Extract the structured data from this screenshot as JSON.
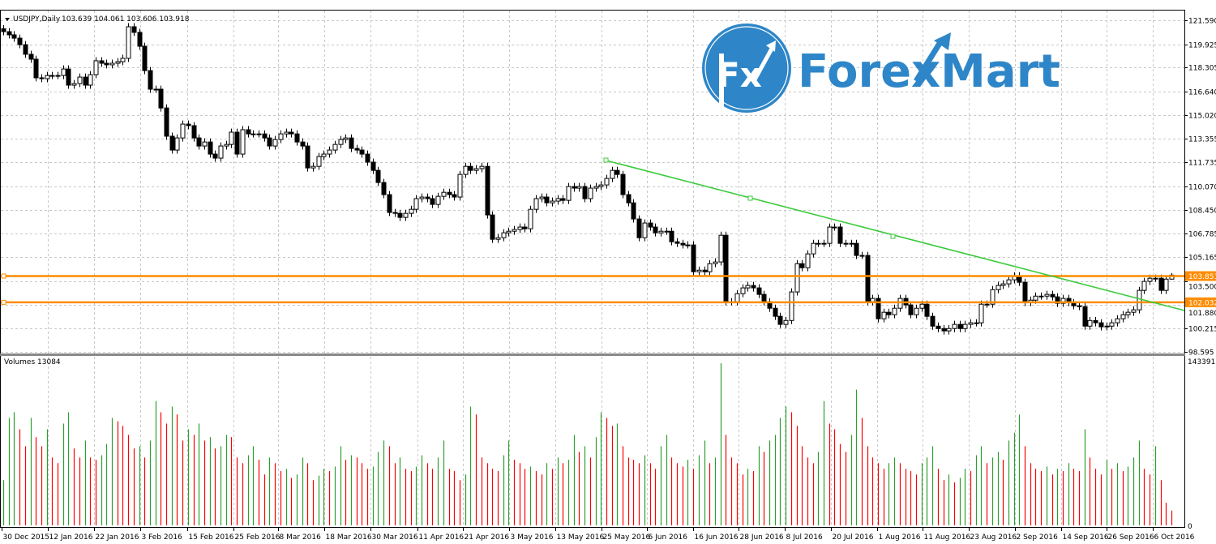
{
  "header": {
    "symbol_label": "USDJPY,Daily",
    "ohlc_text": "103.639 104.061 103.606 103.918",
    "menu_icon": "triangle-down-icon"
  },
  "volume_pane": {
    "label": "Volumes 13084",
    "max_label": "143391",
    "zero_label": "0",
    "max_value": 143391,
    "up_color": "#2ca02c",
    "down_color": "#ff0000"
  },
  "logo": {
    "text": "ForexMart",
    "badge_text": "Fx",
    "color": "#2E86C8"
  },
  "price_axis": {
    "ticks": [
      "121.590",
      "119.925",
      "118.305",
      "116.640",
      "115.020",
      "113.355",
      "111.735",
      "110.070",
      "108.450",
      "106.785",
      "105.165",
      "103.500",
      "101.880",
      "100.215",
      "98.595"
    ],
    "max": 121.59,
    "min": 98.595
  },
  "date_axis": {
    "labels": [
      "30 Dec 2015",
      "12 Jan 2016",
      "22 Jan 2016",
      "3 Feb 2016",
      "15 Feb 2016",
      "25 Feb 2016",
      "8 Mar 2016",
      "18 Mar 2016",
      "30 Mar 2016",
      "11 Apr 2016",
      "21 Apr 2016",
      "3 May 2016",
      "13 May 2016",
      "25 May 2016",
      "6 Jun 2016",
      "16 Jun 2016",
      "28 Jun 2016",
      "8 Jul 2016",
      "20 Jul 2016",
      "1 Aug 2016",
      "11 Aug 2016",
      "23 Aug 2016",
      "2 Sep 2016",
      "14 Sep 2016",
      "26 Sep 2016",
      "6 Oct 2016"
    ]
  },
  "levels": [
    {
      "label": "103.851",
      "price": 103.851,
      "color": "#FF8C00"
    },
    {
      "label": "102.032",
      "price": 102.032,
      "color": "#FF8C00"
    }
  ],
  "trendline": {
    "color": "#3CCB3C"
  },
  "chart_data": {
    "type": "candlestick",
    "symbol": "USDJPY",
    "timeframe": "Daily",
    "last_bar": {
      "open": 103.639,
      "high": 104.061,
      "low": 103.606,
      "close": 103.918
    },
    "close": [
      120.8,
      120.58,
      120.35,
      119.9,
      119.23,
      118.89,
      117.6,
      117.54,
      117.76,
      117.76,
      117.76,
      118.21,
      117.09,
      117.2,
      117.65,
      117.09,
      117.82,
      118.78,
      118.61,
      118.5,
      118.61,
      118.72,
      118.95,
      121.14,
      120.75,
      119.79,
      118.1,
      116.81,
      116.81,
      115.51,
      113.55,
      112.59,
      113.43,
      114.39,
      114.28,
      113.43,
      112.87,
      113.15,
      112.31,
      112.03,
      112.87,
      112.98,
      113.83,
      112.31,
      114.0,
      113.71,
      113.71,
      113.71,
      113.43,
      112.87,
      113.32,
      113.71,
      113.83,
      113.71,
      113.15,
      112.87,
      111.35,
      111.46,
      112.14,
      112.31,
      112.59,
      112.98,
      113.32,
      113.43,
      112.7,
      112.59,
      112.31,
      111.75,
      111.18,
      110.34,
      109.5,
      108.26,
      108.2,
      107.92,
      108.2,
      108.48,
      109.22,
      109.33,
      109.22,
      108.82,
      109.38,
      109.66,
      109.5,
      109.33,
      110.9,
      111.46,
      111.18,
      111.3,
      111.46,
      108.09,
      106.4,
      106.51,
      106.85,
      106.96,
      107.08,
      107.25,
      107.13,
      108.48,
      109.22,
      109.33,
      108.93,
      109.05,
      109.22,
      109.1,
      110.06,
      109.95,
      110.06,
      109.22,
      109.95,
      110.06,
      110.17,
      110.62,
      111.18,
      110.9,
      109.5,
      108.93,
      107.81,
      106.51,
      107.53,
      107.25,
      106.85,
      106.96,
      106.96,
      106.23,
      106.12,
      106.01,
      106.01,
      104.15,
      104.26,
      104.15,
      104.71,
      104.83,
      106.68,
      102.07,
      102.07,
      102.63,
      103.03,
      103.2,
      103.03,
      102.58,
      102.07,
      101.62,
      101.06,
      100.5,
      100.77,
      102.75,
      104.71,
      104.43,
      105.39,
      106.12,
      106.12,
      106.12,
      107.25,
      107.25,
      106.12,
      106.12,
      106.12,
      105.28,
      105.28,
      102.07,
      102.3,
      100.89,
      101.34,
      101.17,
      101.62,
      102.3,
      101.85,
      101.17,
      101.62,
      101.9,
      101.06,
      100.38,
      100.21,
      100.05,
      100.21,
      100.5,
      100.21,
      100.5,
      100.61,
      100.61,
      101.9,
      101.9,
      102.91,
      103.2,
      103.31,
      103.59,
      103.87,
      103.42,
      102.01,
      102.18,
      102.46,
      102.46,
      102.58,
      102.41,
      101.96,
      102.3,
      102.01,
      101.79,
      101.73,
      100.38,
      100.77,
      100.61,
      100.33,
      100.38,
      100.61,
      100.89,
      101.17,
      101.34,
      101.51,
      102.86,
      103.48,
      103.7,
      103.7,
      102.86,
      103.639,
      103.918
    ],
    "volume": [
      40000,
      95000,
      100000,
      85000,
      70000,
      95000,
      78000,
      70000,
      85000,
      60000,
      55000,
      90000,
      100000,
      68000,
      60000,
      75000,
      60000,
      58000,
      62000,
      72000,
      95000,
      92000,
      88000,
      80000,
      68000,
      70000,
      60000,
      75000,
      110000,
      100000,
      90000,
      105000,
      98000,
      75000,
      85000,
      80000,
      90000,
      75000,
      78000,
      68000,
      70000,
      80000,
      78000,
      60000,
      55000,
      62000,
      70000,
      58000,
      45000,
      60000,
      55000,
      48000,
      50000,
      42000,
      45000,
      60000,
      55000,
      40000,
      44000,
      50000,
      48000,
      52000,
      70000,
      58000,
      62000,
      60000,
      55000,
      50000,
      52000,
      65000,
      75000,
      70000,
      55000,
      60000,
      50000,
      48000,
      52000,
      62000,
      55000,
      50000,
      60000,
      75000,
      50000,
      48000,
      40000,
      45000,
      105000,
      98000,
      60000,
      55000,
      50000,
      48000,
      62000,
      75000,
      58000,
      55000,
      50000,
      52000,
      48000,
      45000,
      55000,
      50000,
      60000,
      55000,
      58000,
      80000,
      65000,
      70000,
      60000,
      78000,
      100000,
      95000,
      88000,
      90000,
      70000,
      60000,
      58000,
      55000,
      62000,
      55000,
      50000,
      70000,
      80000,
      60000,
      55000,
      52000,
      58000,
      50000,
      62000,
      75000,
      55000,
      60000,
      143391,
      80000,
      60000,
      55000,
      45000,
      50000,
      48000,
      70000,
      65000,
      75000,
      80000,
      95000,
      105000,
      100000,
      88000,
      70000,
      60000,
      55000,
      65000,
      110000,
      90000,
      85000,
      72000,
      65000,
      80000,
      120000,
      95000,
      70000,
      60000,
      55000,
      50000,
      55000,
      60000,
      55000,
      50000,
      48000,
      45000,
      55000,
      60000,
      70000,
      50000,
      40000,
      45000,
      38000,
      42000,
      50000,
      48000,
      62000,
      70000,
      55000,
      60000,
      65000,
      58000,
      75000,
      82000,
      98000,
      70000,
      55000,
      50000,
      48000,
      52000,
      45000,
      50000,
      48000,
      55000,
      50000,
      48000,
      85000,
      60000,
      50000,
      45000,
      58000,
      50000,
      55000,
      48000,
      52000,
      60000,
      75000,
      50000,
      45000,
      70000,
      40000,
      20000,
      13084
    ],
    "ylim": [
      98.595,
      121.59
    ],
    "grid": true
  }
}
